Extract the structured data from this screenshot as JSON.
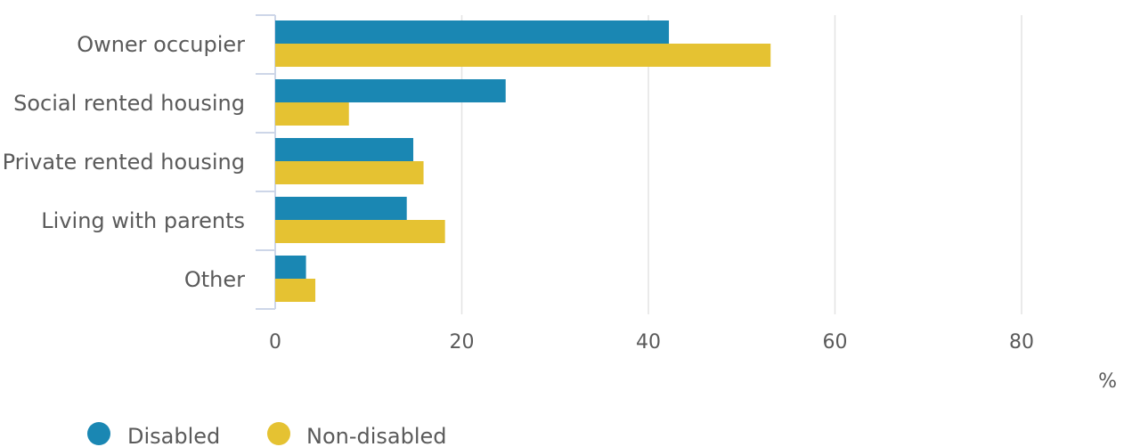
{
  "chart_data": {
    "type": "bar",
    "orientation": "horizontal",
    "categories": [
      "Owner occupier",
      "Social rented housing",
      "Private rented housing",
      "Living with parents",
      "Other"
    ],
    "series": [
      {
        "name": "Disabled",
        "color": "#1a87b3",
        "values": [
          42.2,
          24.7,
          14.8,
          14.1,
          3.3
        ]
      },
      {
        "name": "Non-disabled",
        "color": "#e5c232",
        "values": [
          53.1,
          7.9,
          15.9,
          18.2,
          4.3
        ]
      }
    ],
    "x_ticks": [
      0,
      20,
      40,
      60,
      80
    ],
    "xlim": [
      0,
      90
    ],
    "xunit": "%",
    "grid": true,
    "legend_position": "bottom-left"
  }
}
